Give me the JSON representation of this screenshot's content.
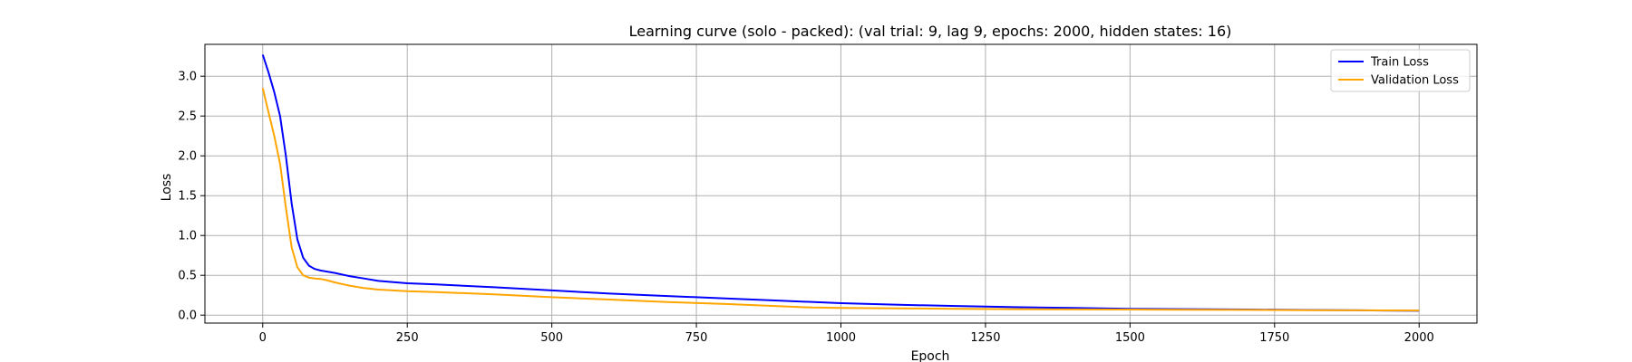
{
  "chart_data": {
    "type": "line",
    "title": "Learning curve (solo - packed): (val trial: 9, lag 9, epochs: 2000, hidden states: 16)",
    "xlabel": "Epoch",
    "ylabel": "Loss",
    "xlim": [
      -100,
      2100
    ],
    "ylim": [
      -0.1,
      3.4
    ],
    "xticks": [
      0,
      250,
      500,
      750,
      1000,
      1250,
      1500,
      1750,
      2000
    ],
    "yticks": [
      0.0,
      0.5,
      1.0,
      1.5,
      2.0,
      2.5,
      3.0
    ],
    "xtick_labels": [
      "0",
      "250",
      "500",
      "750",
      "1000",
      "1250",
      "1500",
      "1750",
      "2000"
    ],
    "ytick_labels": [
      "0.0",
      "0.5",
      "1.0",
      "1.5",
      "2.0",
      "2.5",
      "3.0"
    ],
    "grid": true,
    "legend_position": "top-right",
    "series": [
      {
        "name": "Train Loss",
        "color": "#0000ff",
        "x": [
          0,
          10,
          20,
          30,
          40,
          50,
          60,
          70,
          80,
          90,
          100,
          125,
          150,
          175,
          200,
          250,
          300,
          400,
          500,
          600,
          700,
          800,
          900,
          1000,
          1100,
          1200,
          1300,
          1400,
          1500,
          1600,
          1700,
          1800,
          1900,
          2000
        ],
        "y": [
          3.27,
          3.05,
          2.8,
          2.5,
          2.0,
          1.4,
          0.95,
          0.72,
          0.62,
          0.58,
          0.56,
          0.53,
          0.49,
          0.46,
          0.43,
          0.4,
          0.385,
          0.35,
          0.31,
          0.27,
          0.24,
          0.21,
          0.18,
          0.15,
          0.13,
          0.115,
          0.1,
          0.09,
          0.08,
          0.075,
          0.07,
          0.065,
          0.06,
          0.055
        ]
      },
      {
        "name": "Validation Loss",
        "color": "#ffa500",
        "x": [
          0,
          10,
          20,
          30,
          40,
          50,
          60,
          70,
          80,
          90,
          100,
          110,
          125,
          150,
          175,
          200,
          250,
          300,
          400,
          500,
          600,
          700,
          800,
          900,
          950,
          1000,
          1100,
          1200,
          1300,
          1400,
          1500,
          1600,
          1700,
          1800,
          1900,
          2000
        ],
        "y": [
          2.85,
          2.55,
          2.25,
          1.9,
          1.35,
          0.85,
          0.6,
          0.5,
          0.47,
          0.46,
          0.455,
          0.44,
          0.41,
          0.37,
          0.34,
          0.32,
          0.3,
          0.29,
          0.26,
          0.225,
          0.195,
          0.165,
          0.14,
          0.11,
          0.095,
          0.09,
          0.085,
          0.08,
          0.075,
          0.072,
          0.07,
          0.068,
          0.066,
          0.063,
          0.06,
          0.058
        ]
      }
    ]
  }
}
